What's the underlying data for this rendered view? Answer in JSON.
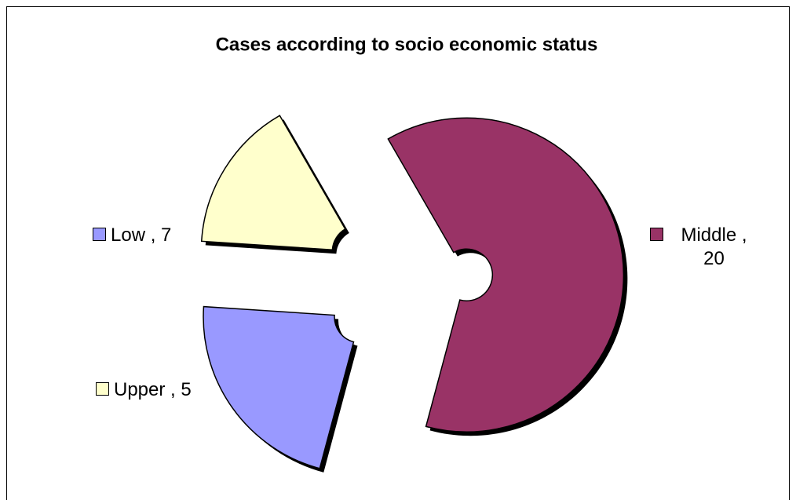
{
  "chart_data": {
    "type": "doughnut",
    "title": "Cases according to socio economic status",
    "categories": [
      "Middle",
      "Low",
      "Upper"
    ],
    "values": [
      20,
      7,
      5
    ],
    "value_labels": [
      "Middle , 20",
      "Low , 7",
      "Upper , 5"
    ],
    "colors": [
      "#993366",
      "#9999ff",
      "#ffffcc"
    ]
  }
}
